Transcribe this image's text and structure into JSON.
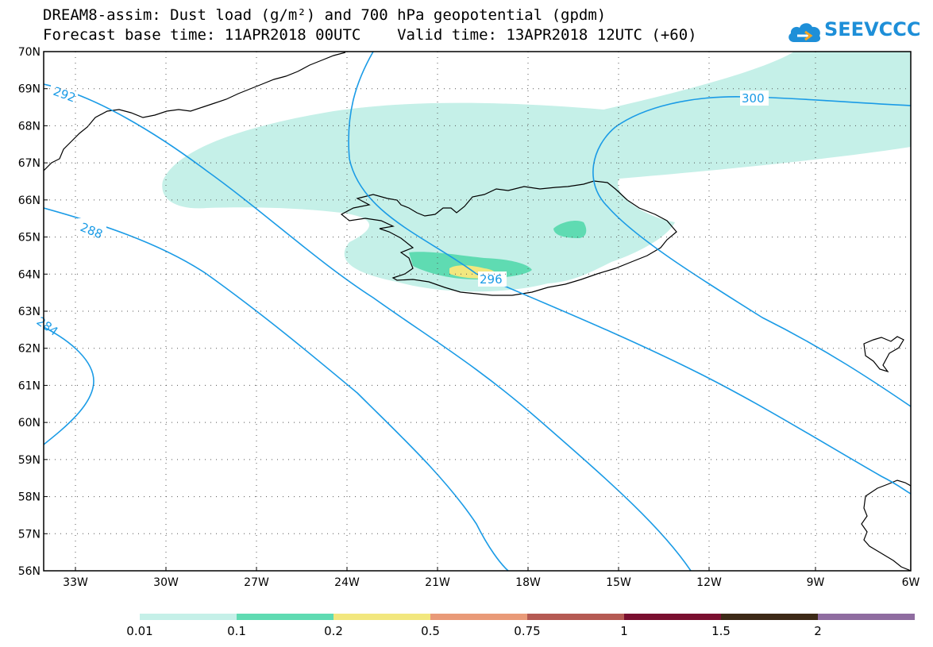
{
  "title": {
    "line1": "DREAM8-assim: Dust load (g/m²) and 700 hPa geopotential (gpdm)",
    "line2": "Forecast base time: 11APR2018 00UTC    Valid time: 13APR2018 12UTC (+60)"
  },
  "logo": {
    "text": "SEEVCCC",
    "icon": "cloud-icon"
  },
  "axes": {
    "lat_labels": [
      "70N",
      "69N",
      "68N",
      "67N",
      "66N",
      "65N",
      "64N",
      "63N",
      "62N",
      "61N",
      "60N",
      "59N",
      "58N",
      "57N",
      "56N"
    ],
    "lon_labels": [
      "33W",
      "30W",
      "27W",
      "24W",
      "21W",
      "18W",
      "15W",
      "12W",
      "9W",
      "6W"
    ]
  },
  "contours": [
    {
      "label": "292"
    },
    {
      "label": "288"
    },
    {
      "label": "284"
    },
    {
      "label": "296"
    },
    {
      "label": "300"
    }
  ],
  "colorbar": {
    "labels": [
      "0.01",
      "0.1",
      "0.2",
      "0.5",
      "0.75",
      "1",
      "1.5",
      "2"
    ],
    "colors": [
      "#c5f0e8",
      "#5fdbb2",
      "#f2e77e",
      "#e99a78",
      "#b55a53",
      "#7a0f30",
      "#3d2a17",
      "#8f6ca0"
    ]
  },
  "colors": {
    "contour": "#1a9be6",
    "grid": "#666666",
    "coast": "#000000"
  }
}
